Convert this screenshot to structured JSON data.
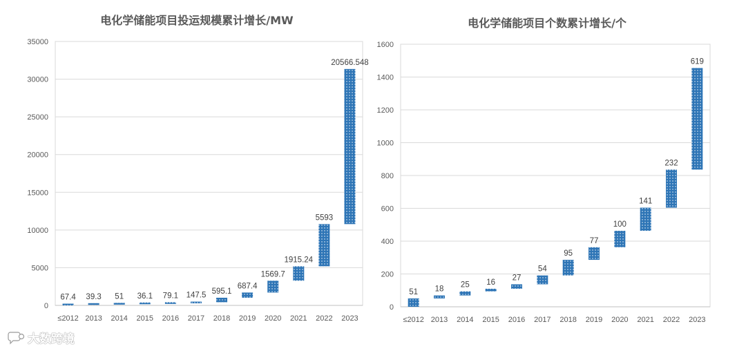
{
  "colors": {
    "bar": "#2e75b6",
    "dot": "#ffffff",
    "grid": "#d9d9d9"
  },
  "watermark": {
    "text": "大数跨境",
    "icon": "chat-bubble-icon"
  },
  "chart_data": [
    {
      "type": "bar",
      "subtype": "waterfall",
      "title": "电化学储能项目投运规模累计增长/MW",
      "categories": [
        "≤2012",
        "2013",
        "2014",
        "2015",
        "2016",
        "2017",
        "2018",
        "2019",
        "2020",
        "2021",
        "2022",
        "2023"
      ],
      "values": [
        67.4,
        39.3,
        51,
        36.1,
        79.1,
        147.5,
        595.1,
        687.4,
        1569.7,
        1915.24,
        5593,
        20566.548
      ],
      "labels": [
        "67.4",
        "39.3",
        "51",
        "36.1",
        "79.1",
        "147.5",
        "595.1",
        "687.4",
        "1569.7",
        "1915.24",
        "5593",
        "20566.548"
      ],
      "ylim": [
        0,
        35000
      ],
      "yticks": [
        0,
        5000,
        10000,
        15000,
        20000,
        25000,
        30000,
        35000
      ],
      "xlabel": "",
      "ylabel": "",
      "grid": true,
      "legend": "none"
    },
    {
      "type": "bar",
      "subtype": "waterfall",
      "title": "电化学储能项目个数累计增长/个",
      "categories": [
        "≤2012",
        "2013",
        "2014",
        "2015",
        "2016",
        "2017",
        "2018",
        "2019",
        "2020",
        "2021",
        "2022",
        "2023"
      ],
      "values": [
        51,
        18,
        25,
        16,
        27,
        54,
        95,
        77,
        100,
        141,
        232,
        619
      ],
      "labels": [
        "51",
        "18",
        "25",
        "16",
        "27",
        "54",
        "95",
        "77",
        "100",
        "141",
        "232",
        "619"
      ],
      "ylim": [
        0,
        1600
      ],
      "yticks": [
        0,
        200,
        400,
        600,
        800,
        1000,
        1200,
        1400,
        1600
      ],
      "xlabel": "",
      "ylabel": "",
      "grid": true,
      "legend": "none"
    }
  ]
}
